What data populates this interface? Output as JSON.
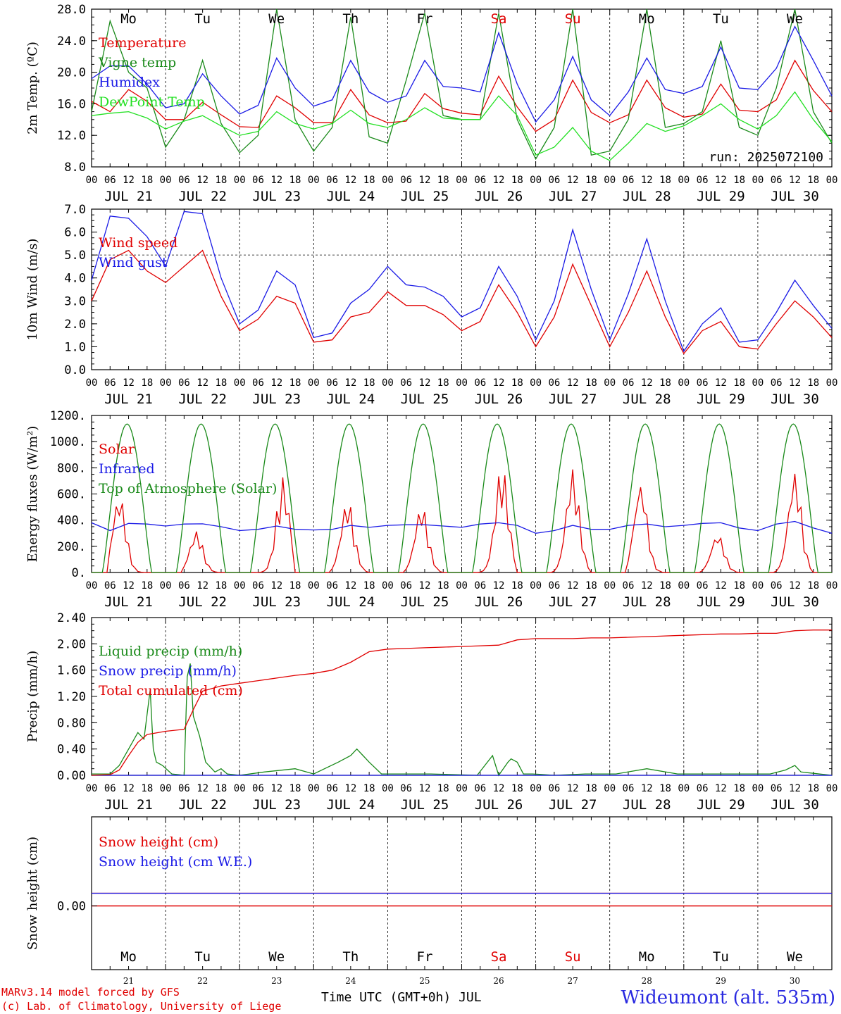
{
  "footer": {
    "model": "MARv3.14 model forced by GFS",
    "credit": "(c) Lab. of Climatology, University of Liege",
    "xlabel": "Time UTC (GMT+0h) JUL",
    "station": "Wideumont (alt. 535m)"
  },
  "run_label": "run: 2025072100",
  "hour_ticks": [
    "00",
    "06",
    "12",
    "18"
  ],
  "final_tick": "00",
  "days": [
    {
      "abbr": "Mo",
      "date": "JUL 21",
      "num": "21",
      "weekend": false
    },
    {
      "abbr": "Tu",
      "date": "JUL 22",
      "num": "22",
      "weekend": false
    },
    {
      "abbr": "We",
      "date": "JUL 23",
      "num": "23",
      "weekend": false
    },
    {
      "abbr": "Th",
      "date": "JUL 24",
      "num": "24",
      "weekend": false
    },
    {
      "abbr": "Fr",
      "date": "JUL 25",
      "num": "25",
      "weekend": false
    },
    {
      "abbr": "Sa",
      "date": "JUL 26",
      "num": "26",
      "weekend": true
    },
    {
      "abbr": "Su",
      "date": "JUL 27",
      "num": "27",
      "weekend": true
    },
    {
      "abbr": "Mo",
      "date": "JUL 28",
      "num": "28",
      "weekend": false
    },
    {
      "abbr": "Tu",
      "date": "JUL 29",
      "num": "29",
      "weekend": false
    },
    {
      "abbr": "We",
      "date": "JUL 30",
      "num": "30",
      "weekend": false
    }
  ],
  "colors": {
    "red": "#e00000",
    "green": "#1a8a1a",
    "blue": "#1a1ae6",
    "lightgreen": "#22e022",
    "weekend": "#e00000"
  },
  "chart_data": [
    {
      "type": "line",
      "ylabel": "2m Temp. (ºC)",
      "ylim": [
        8,
        28
      ],
      "yticks": [
        "8.0",
        "12.0",
        "16.0",
        "20.0",
        "24.0",
        "28.0"
      ],
      "x_unit": "hours since JUL 21 00 UTC",
      "x_range": [
        0,
        240
      ],
      "series": [
        {
          "name": "Temperature",
          "color": "red",
          "x": [
            0,
            6,
            12,
            18,
            24,
            30,
            36,
            42,
            48,
            54,
            60,
            66,
            72,
            78,
            84,
            90,
            96,
            102,
            108,
            114,
            120,
            126,
            132,
            138,
            144,
            150,
            156,
            162,
            168,
            174,
            180,
            186,
            192,
            198,
            204,
            210,
            216,
            222,
            228,
            234,
            240
          ],
          "y": [
            16.3,
            15.0,
            17.8,
            16.3,
            14.0,
            14.0,
            16.2,
            14.6,
            13.1,
            13.0,
            17.0,
            15.5,
            13.6,
            13.6,
            17.8,
            14.6,
            13.6,
            13.8,
            17.3,
            15.4,
            14.8,
            14.6,
            19.5,
            15.6,
            12.5,
            14.0,
            19.0,
            14.9,
            13.6,
            14.6,
            19.0,
            15.5,
            14.3,
            14.7,
            18.5,
            15.2,
            15.0,
            16.5,
            21.5,
            17.7,
            15.0
          ]
        },
        {
          "name": "Vigne temp",
          "color": "green",
          "x": [
            0,
            6,
            12,
            18,
            24,
            30,
            36,
            42,
            48,
            54,
            60,
            66,
            72,
            78,
            84,
            90,
            96,
            102,
            108,
            114,
            120,
            126,
            132,
            138,
            144,
            150,
            156,
            162,
            168,
            174,
            180,
            186,
            192,
            198,
            204,
            210,
            216,
            222,
            228,
            234,
            240
          ],
          "y": [
            15.0,
            26.5,
            20.0,
            18.0,
            10.5,
            14.0,
            21.5,
            13.5,
            9.8,
            12.0,
            28.0,
            14.0,
            10.0,
            13.0,
            27.0,
            11.8,
            11.0,
            19.0,
            27.5,
            14.5,
            14.0,
            14.0,
            27.5,
            14.0,
            9.0,
            13.0,
            28.0,
            9.5,
            10.0,
            14.0,
            28.0,
            13.0,
            13.5,
            15.0,
            24.0,
            13.0,
            12.0,
            18.0,
            28.0,
            15.0,
            11.0
          ]
        },
        {
          "name": "Humidex",
          "color": "blue",
          "x": [
            0,
            6,
            12,
            18,
            24,
            30,
            36,
            42,
            48,
            54,
            60,
            66,
            72,
            78,
            84,
            90,
            96,
            102,
            108,
            114,
            120,
            126,
            132,
            138,
            144,
            150,
            156,
            162,
            168,
            174,
            180,
            186,
            192,
            198,
            204,
            210,
            216,
            222,
            228,
            234,
            240
          ],
          "y": [
            19.2,
            20.8,
            20.8,
            18.5,
            15.5,
            16.0,
            19.8,
            17.0,
            14.7,
            15.8,
            21.8,
            18.0,
            15.7,
            16.5,
            21.5,
            17.5,
            16.2,
            17.0,
            21.5,
            18.2,
            18.0,
            17.5,
            25.0,
            18.5,
            13.7,
            16.5,
            22.0,
            16.5,
            14.5,
            17.5,
            21.8,
            17.8,
            17.3,
            18.2,
            23.2,
            18.0,
            17.8,
            20.5,
            25.8,
            21.5,
            17.0
          ]
        },
        {
          "name": "DewPoint Temp",
          "color": "lightgreen",
          "x": [
            0,
            6,
            12,
            18,
            24,
            30,
            36,
            42,
            48,
            54,
            60,
            66,
            72,
            78,
            84,
            90,
            96,
            102,
            108,
            114,
            120,
            126,
            132,
            138,
            144,
            150,
            156,
            162,
            168,
            174,
            180,
            186,
            192,
            198,
            204,
            210,
            216,
            222,
            228,
            234,
            240
          ],
          "y": [
            14.5,
            14.8,
            15.0,
            14.2,
            12.8,
            13.8,
            14.5,
            13.2,
            12.0,
            12.5,
            15.0,
            13.5,
            12.8,
            13.5,
            15.2,
            13.5,
            13.0,
            14.0,
            15.5,
            14.2,
            14.0,
            14.0,
            17.0,
            14.5,
            9.5,
            10.5,
            13.0,
            10.0,
            8.8,
            11.0,
            13.5,
            12.5,
            13.2,
            14.5,
            16.0,
            14.0,
            12.8,
            14.5,
            17.5,
            14.0,
            11.2
          ]
        }
      ]
    },
    {
      "type": "line",
      "ylabel": "10m Wind (m/s)",
      "ylim": [
        0,
        7
      ],
      "yticks": [
        "0.0",
        "1.0",
        "2.0",
        "3.0",
        "4.0",
        "5.0",
        "6.0",
        "7.0"
      ],
      "ref_line": 5,
      "x_unit": "hours since JUL 21 00 UTC",
      "x_range": [
        0,
        240
      ],
      "series": [
        {
          "name": "Wind speed",
          "color": "red",
          "x": [
            0,
            6,
            12,
            18,
            24,
            30,
            36,
            42,
            48,
            54,
            60,
            66,
            72,
            78,
            84,
            90,
            96,
            102,
            108,
            114,
            120,
            126,
            132,
            138,
            144,
            150,
            156,
            162,
            168,
            174,
            180,
            186,
            192,
            198,
            204,
            210,
            216,
            222,
            228,
            234,
            240
          ],
          "y": [
            3.0,
            4.8,
            5.2,
            4.3,
            3.8,
            4.5,
            5.2,
            3.2,
            1.7,
            2.2,
            3.2,
            2.9,
            1.2,
            1.3,
            2.3,
            2.5,
            3.4,
            2.8,
            2.8,
            2.4,
            1.7,
            2.1,
            3.7,
            2.5,
            1.0,
            2.3,
            4.6,
            2.8,
            1.0,
            2.5,
            4.3,
            2.3,
            0.7,
            1.7,
            2.1,
            1.0,
            0.9,
            2.0,
            3.0,
            2.3,
            1.4
          ]
        },
        {
          "name": "Wind gust",
          "color": "blue",
          "x": [
            0,
            6,
            12,
            18,
            24,
            30,
            36,
            42,
            48,
            54,
            60,
            66,
            72,
            78,
            84,
            90,
            96,
            102,
            108,
            114,
            120,
            126,
            132,
            138,
            144,
            150,
            156,
            162,
            168,
            174,
            180,
            186,
            192,
            198,
            204,
            210,
            216,
            222,
            228,
            234,
            240
          ],
          "y": [
            3.9,
            6.7,
            6.6,
            5.8,
            4.5,
            6.9,
            6.8,
            4.0,
            2.0,
            2.6,
            4.3,
            3.7,
            1.4,
            1.6,
            2.9,
            3.5,
            4.5,
            3.7,
            3.6,
            3.2,
            2.3,
            2.7,
            4.5,
            3.2,
            1.3,
            3.0,
            6.1,
            3.5,
            1.3,
            3.3,
            5.7,
            3.0,
            0.8,
            2.0,
            2.7,
            1.2,
            1.3,
            2.5,
            3.9,
            2.8,
            1.8
          ]
        }
      ]
    },
    {
      "type": "line",
      "ylabel": "Energy fluxes (W/m²)",
      "ylim": [
        0,
        1200
      ],
      "yticks": [
        "0.",
        "200.",
        "400.",
        "600.",
        "800.",
        "1000.",
        "1200."
      ],
      "x_unit": "hours since JUL 21 00 UTC",
      "x_range": [
        0,
        240
      ],
      "series": [
        {
          "name": "Solar",
          "color": "red",
          "peaks": [
            600,
            320,
            730,
            560,
            520,
            830,
            800,
            700,
            300,
            780
          ],
          "peak_hours": [
            9,
            10,
            14,
            11,
            11,
            13,
            12,
            10,
            11,
            12
          ]
        },
        {
          "name": "Infrared",
          "color": "blue",
          "x": [
            0,
            6,
            12,
            18,
            24,
            30,
            36,
            42,
            48,
            54,
            60,
            66,
            72,
            78,
            84,
            90,
            96,
            102,
            108,
            114,
            120,
            126,
            132,
            138,
            144,
            150,
            156,
            162,
            168,
            174,
            180,
            186,
            192,
            198,
            204,
            210,
            216,
            222,
            228,
            234,
            240
          ],
          "y": [
            380,
            320,
            375,
            370,
            355,
            370,
            372,
            350,
            320,
            330,
            355,
            330,
            325,
            330,
            360,
            345,
            360,
            365,
            365,
            355,
            345,
            370,
            380,
            360,
            300,
            320,
            360,
            330,
            330,
            360,
            370,
            350,
            360,
            375,
            380,
            340,
            320,
            370,
            390,
            340,
            300
          ]
        },
        {
          "name": "Top of Atmosphere (Solar)",
          "color": "green",
          "daily_max": 1135
        }
      ]
    },
    {
      "type": "line",
      "ylabel": "Precip (mm/h)",
      "ylim": [
        0,
        2.4
      ],
      "yticks": [
        "0.00",
        "0.40",
        "0.80",
        "1.20",
        "1.60",
        "2.00",
        "2.40"
      ],
      "x_unit": "hours since JUL 21 00 UTC",
      "x_range": [
        0,
        240
      ],
      "series": [
        {
          "name": "Liquid precip (mm/h)",
          "color": "green",
          "x": [
            0,
            6,
            9,
            12,
            15,
            17,
            19,
            20,
            21,
            23,
            26,
            30,
            31,
            32,
            33,
            35,
            37,
            40,
            42,
            44,
            48,
            56,
            66,
            72,
            80,
            84,
            86,
            88,
            90,
            94,
            100,
            110,
            125,
            130,
            140,
            135,
            132,
            136,
            138,
            143,
            150,
            160,
            170,
            180,
            190,
            200,
            210,
            220,
            225,
            228,
            230,
            240
          ],
          "y": [
            0.02,
            0.02,
            0.15,
            0.4,
            0.65,
            0.55,
            1.3,
            0.4,
            0.2,
            0.15,
            0.02,
            0.0,
            1.5,
            1.7,
            0.9,
            0.6,
            0.2,
            0.05,
            0.1,
            0.02,
            0.0,
            0.05,
            0.1,
            0.02,
            0.2,
            0.3,
            0.4,
            0.3,
            0.2,
            0.02,
            0.02,
            0.02,
            0.0,
            0.3,
            0.02,
            0.2,
            0.0,
            0.25,
            0.2,
            0.02,
            0.0,
            0.02,
            0.02,
            0.1,
            0.02,
            0.02,
            0.02,
            0.02,
            0.08,
            0.15,
            0.05,
            0.0
          ]
        },
        {
          "name": "Snow precip (mm/h)",
          "color": "blue",
          "x": [
            0,
            240
          ],
          "y": [
            0,
            0
          ]
        },
        {
          "name": "Total cumulated (cm)",
          "color": "red",
          "x": [
            0,
            6,
            9,
            12,
            15,
            18,
            24,
            30,
            33,
            36,
            42,
            48,
            54,
            60,
            66,
            72,
            78,
            84,
            90,
            96,
            102,
            108,
            114,
            120,
            126,
            132,
            138,
            144,
            150,
            156,
            162,
            168,
            174,
            180,
            186,
            192,
            198,
            204,
            210,
            216,
            222,
            228,
            234,
            240
          ],
          "y": [
            0.0,
            0.01,
            0.08,
            0.3,
            0.5,
            0.62,
            0.67,
            0.7,
            1.0,
            1.28,
            1.36,
            1.4,
            1.44,
            1.48,
            1.52,
            1.55,
            1.6,
            1.72,
            1.88,
            1.92,
            1.93,
            1.94,
            1.95,
            1.96,
            1.97,
            1.98,
            2.06,
            2.08,
            2.08,
            2.08,
            2.09,
            2.09,
            2.1,
            2.11,
            2.12,
            2.13,
            2.14,
            2.15,
            2.15,
            2.16,
            2.16,
            2.2,
            2.21,
            2.21
          ]
        }
      ]
    },
    {
      "type": "line",
      "ylabel": "Snow height (cm)",
      "yticks": [
        "0.00"
      ],
      "x_unit": "hours since JUL 21 00 UTC",
      "x_range": [
        0,
        240
      ],
      "series": [
        {
          "name": "Snow height (cm)",
          "color": "red",
          "x": [
            0,
            240
          ],
          "y": [
            0,
            0
          ]
        },
        {
          "name": "Snow height (cm W.E.)",
          "color": "blue",
          "x": [
            0,
            240
          ],
          "y": [
            0,
            0
          ]
        }
      ]
    }
  ]
}
